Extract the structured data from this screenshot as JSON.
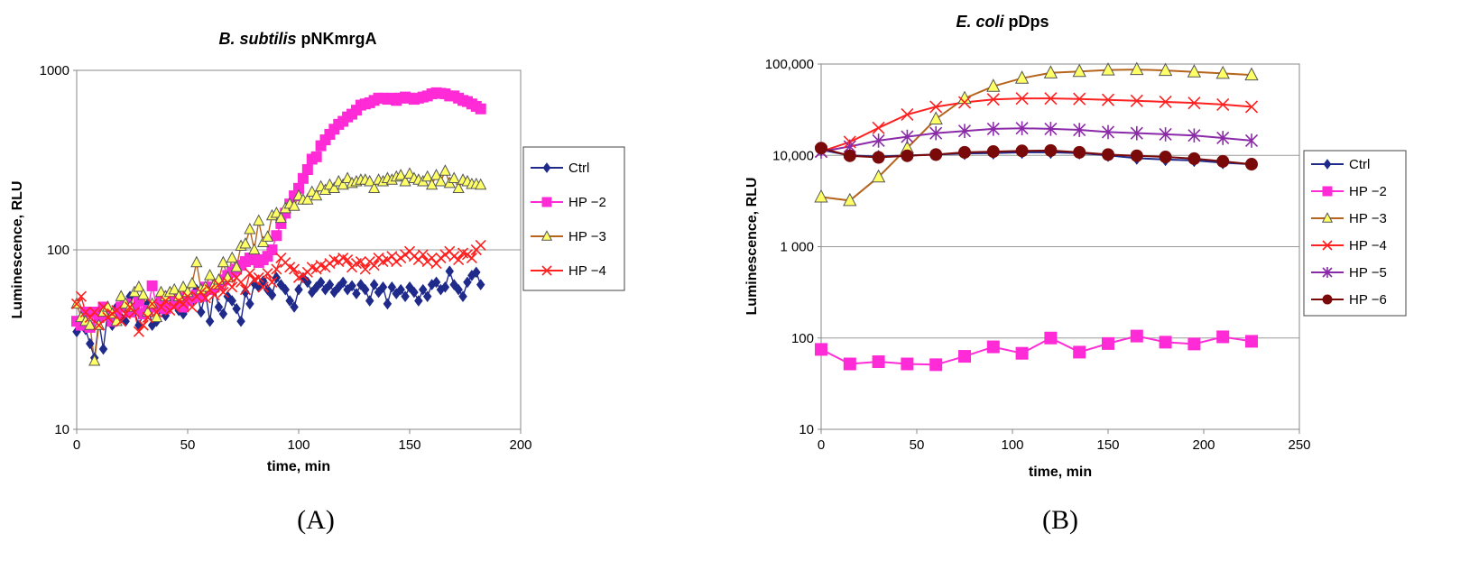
{
  "figure": {
    "panel_labels": [
      "(A)",
      "(B)"
    ]
  },
  "chart_data": [
    {
      "type": "line",
      "title_italic": "B. subtilis",
      "title_rest": " pNKmrgA",
      "xlabel": "time, min",
      "ylabel": "Luminescence, RLU",
      "xlim": [
        0,
        200
      ],
      "ylim": [
        10,
        1000
      ],
      "yscale": "log",
      "xticks": [
        0,
        50,
        100,
        150,
        200
      ],
      "xtick_labels": [
        "0",
        "50",
        "100",
        "150",
        "200"
      ],
      "yticks": [
        10,
        100,
        1000
      ],
      "ytick_labels": [
        "10",
        "100",
        "1000"
      ],
      "grid": "horizontal",
      "legend_position": "right",
      "series": [
        {
          "name": "Ctrl",
          "color": "#1f2a8a",
          "marker": "diamond",
          "x": [
            0,
            2,
            4,
            6,
            8,
            10,
            12,
            14,
            16,
            18,
            20,
            22,
            24,
            26,
            28,
            30,
            32,
            34,
            36,
            38,
            40,
            42,
            44,
            46,
            48,
            50,
            52,
            54,
            56,
            58,
            60,
            62,
            64,
            66,
            68,
            70,
            72,
            74,
            76,
            78,
            80,
            82,
            84,
            86,
            88,
            90,
            92,
            94,
            96,
            98,
            100,
            102,
            104,
            106,
            108,
            110,
            112,
            114,
            116,
            118,
            120,
            122,
            124,
            126,
            128,
            130,
            132,
            134,
            136,
            138,
            140,
            142,
            144,
            146,
            148,
            150,
            152,
            154,
            156,
            158,
            160,
            162,
            164,
            166,
            168,
            170,
            172,
            174,
            176,
            178,
            180,
            182
          ],
          "y": [
            35,
            42,
            36,
            30,
            25,
            40,
            28,
            45,
            38,
            48,
            42,
            40,
            55,
            45,
            38,
            44,
            50,
            38,
            40,
            47,
            43,
            48,
            50,
            46,
            44,
            55,
            52,
            60,
            45,
            58,
            40,
            62,
            48,
            44,
            55,
            52,
            47,
            40,
            58,
            50,
            65,
            62,
            67,
            60,
            56,
            70,
            64,
            60,
            52,
            48,
            60,
            70,
            66,
            58,
            62,
            66,
            60,
            64,
            58,
            62,
            66,
            60,
            63,
            57,
            64,
            60,
            52,
            64,
            58,
            62,
            50,
            62,
            57,
            60,
            55,
            62,
            58,
            52,
            60,
            55,
            64,
            66,
            60,
            62,
            76,
            64,
            60,
            55,
            66,
            72,
            75,
            64
          ]
        },
        {
          "name": "HP −2",
          "color": "#ff2bd6",
          "marker": "square",
          "x": [
            0,
            2,
            4,
            6,
            8,
            10,
            12,
            14,
            16,
            18,
            20,
            22,
            24,
            26,
            28,
            30,
            32,
            34,
            36,
            38,
            40,
            42,
            44,
            46,
            48,
            50,
            52,
            54,
            56,
            58,
            60,
            62,
            64,
            66,
            68,
            70,
            72,
            74,
            76,
            78,
            80,
            82,
            84,
            86,
            88,
            90,
            92,
            94,
            96,
            98,
            100,
            102,
            104,
            106,
            108,
            110,
            112,
            114,
            116,
            118,
            120,
            122,
            124,
            126,
            128,
            130,
            132,
            134,
            136,
            138,
            140,
            142,
            144,
            146,
            148,
            150,
            152,
            154,
            156,
            158,
            160,
            162,
            164,
            166,
            168,
            170,
            172,
            174,
            176,
            178,
            180,
            182
          ],
          "y": [
            40,
            38,
            45,
            37,
            45,
            42,
            48,
            44,
            40,
            44,
            48,
            50,
            45,
            47,
            52,
            44,
            46,
            63,
            48,
            52,
            47,
            55,
            50,
            54,
            48,
            52,
            54,
            56,
            55,
            62,
            60,
            62,
            64,
            68,
            72,
            75,
            78,
            82,
            86,
            90,
            88,
            85,
            88,
            92,
            100,
            120,
            140,
            160,
            180,
            200,
            220,
            250,
            280,
            320,
            330,
            380,
            410,
            440,
            470,
            500,
            520,
            550,
            570,
            600,
            640,
            650,
            660,
            680,
            700,
            700,
            690,
            700,
            680,
            700,
            710,
            700,
            690,
            700,
            710,
            720,
            740,
            750,
            745,
            740,
            720,
            720,
            700,
            680,
            670,
            650,
            630,
            610
          ]
        },
        {
          "name": "HP −3",
          "color": "#b5651d",
          "marker": "triangle",
          "x": [
            0,
            2,
            4,
            6,
            8,
            10,
            12,
            14,
            16,
            18,
            20,
            22,
            24,
            26,
            28,
            30,
            32,
            34,
            36,
            38,
            40,
            42,
            44,
            46,
            48,
            50,
            52,
            54,
            56,
            58,
            60,
            62,
            64,
            66,
            68,
            70,
            72,
            74,
            76,
            78,
            80,
            82,
            84,
            86,
            88,
            90,
            92,
            94,
            96,
            98,
            100,
            102,
            104,
            106,
            108,
            110,
            112,
            114,
            116,
            118,
            120,
            122,
            124,
            126,
            128,
            130,
            132,
            134,
            136,
            138,
            140,
            142,
            144,
            146,
            148,
            150,
            152,
            154,
            156,
            158,
            160,
            162,
            164,
            166,
            168,
            170,
            172,
            174,
            176,
            178,
            180,
            182
          ],
          "y": [
            50,
            42,
            40,
            38,
            24,
            38,
            45,
            48,
            44,
            40,
            55,
            50,
            48,
            58,
            62,
            56,
            45,
            50,
            42,
            58,
            55,
            58,
            60,
            55,
            62,
            58,
            65,
            85,
            60,
            62,
            72,
            64,
            68,
            85,
            70,
            90,
            80,
            105,
            108,
            130,
            100,
            145,
            110,
            118,
            155,
            160,
            150,
            170,
            180,
            175,
            200,
            190,
            190,
            210,
            200,
            225,
            215,
            230,
            220,
            240,
            230,
            250,
            235,
            240,
            245,
            245,
            240,
            220,
            245,
            240,
            250,
            245,
            255,
            260,
            240,
            265,
            250,
            245,
            240,
            255,
            230,
            260,
            240,
            275,
            235,
            250,
            220,
            245,
            240,
            232,
            232,
            230
          ]
        },
        {
          "name": "HP −4",
          "color": "#ff2020",
          "marker": "x",
          "x": [
            0,
            2,
            4,
            6,
            8,
            10,
            12,
            14,
            16,
            18,
            20,
            22,
            24,
            26,
            28,
            30,
            32,
            34,
            36,
            38,
            40,
            42,
            44,
            46,
            48,
            50,
            52,
            54,
            56,
            58,
            60,
            62,
            64,
            66,
            68,
            70,
            72,
            74,
            76,
            78,
            80,
            82,
            84,
            86,
            88,
            90,
            92,
            94,
            96,
            98,
            100,
            102,
            104,
            106,
            108,
            110,
            112,
            114,
            116,
            118,
            120,
            122,
            124,
            126,
            128,
            130,
            132,
            134,
            136,
            138,
            140,
            142,
            144,
            146,
            148,
            150,
            152,
            154,
            156,
            158,
            160,
            162,
            164,
            166,
            168,
            170,
            172,
            174,
            176,
            178,
            180,
            182
          ],
          "y": [
            50,
            55,
            45,
            42,
            45,
            38,
            48,
            42,
            44,
            46,
            40,
            44,
            48,
            45,
            35,
            38,
            42,
            50,
            45,
            48,
            52,
            46,
            48,
            52,
            50,
            55,
            48,
            55,
            58,
            54,
            60,
            56,
            64,
            58,
            66,
            62,
            70,
            66,
            60,
            74,
            68,
            70,
            62,
            74,
            66,
            78,
            90,
            85,
            80,
            78,
            70,
            72,
            75,
            80,
            78,
            82,
            80,
            84,
            88,
            86,
            90,
            88,
            80,
            84,
            86,
            78,
            86,
            82,
            90,
            86,
            88,
            92,
            86,
            90,
            94,
            98,
            92,
            88,
            94,
            86,
            90,
            84,
            90,
            94,
            98,
            92,
            88,
            96,
            94,
            90,
            100,
            106
          ]
        }
      ]
    },
    {
      "type": "line",
      "title_italic": "E. coli",
      "title_rest": " pDps",
      "xlabel": "time, min",
      "ylabel": "Luminescence, RLU",
      "xlim": [
        0,
        250
      ],
      "ylim": [
        10,
        100000
      ],
      "yscale": "log",
      "xticks": [
        0,
        50,
        100,
        150,
        200,
        250
      ],
      "xtick_labels": [
        "0",
        "50",
        "100",
        "150",
        "200",
        "250"
      ],
      "yticks": [
        10,
        100,
        1000,
        10000,
        100000
      ],
      "ytick_labels": [
        "10",
        "100",
        "1 000",
        "10,000",
        "100,000"
      ],
      "grid": "horizontal",
      "legend_position": "right",
      "series": [
        {
          "name": "Ctrl",
          "color": "#1f2a8a",
          "marker": "diamond",
          "x": [
            0,
            15,
            30,
            45,
            60,
            75,
            90,
            105,
            120,
            135,
            150,
            165,
            180,
            195,
            210,
            225
          ],
          "y": [
            11500,
            10000,
            9700,
            10000,
            10200,
            10500,
            10600,
            10800,
            10800,
            10600,
            10000,
            9300,
            9000,
            8800,
            8300,
            8000
          ]
        },
        {
          "name": "HP −2",
          "color": "#ff2bd6",
          "marker": "square",
          "x": [
            0,
            15,
            30,
            45,
            60,
            75,
            90,
            105,
            120,
            135,
            150,
            165,
            180,
            195,
            210,
            225
          ],
          "y": [
            75,
            52,
            55,
            52,
            51,
            63,
            80,
            68,
            100,
            70,
            87,
            105,
            90,
            86,
            103,
            92
          ]
        },
        {
          "name": "HP −3",
          "color": "#b5651d",
          "marker": "triangle",
          "x": [
            0,
            15,
            30,
            45,
            60,
            75,
            90,
            105,
            120,
            135,
            150,
            165,
            180,
            195,
            210,
            225
          ],
          "y": [
            3500,
            3200,
            5800,
            12000,
            25000,
            42000,
            57000,
            70000,
            80000,
            83000,
            86000,
            87000,
            85000,
            82000,
            79000,
            76000
          ]
        },
        {
          "name": "HP −4",
          "color": "#ff2020",
          "marker": "x",
          "x": [
            0,
            15,
            30,
            45,
            60,
            75,
            90,
            105,
            120,
            135,
            150,
            165,
            180,
            195,
            210,
            225
          ],
          "y": [
            11000,
            14000,
            20000,
            28000,
            34000,
            38000,
            41000,
            42000,
            42000,
            41500,
            40500,
            39500,
            38500,
            37500,
            36000,
            34000
          ]
        },
        {
          "name": "HP −5",
          "color": "#8b2aa8",
          "marker": "star",
          "x": [
            0,
            15,
            30,
            45,
            60,
            75,
            90,
            105,
            120,
            135,
            150,
            165,
            180,
            195,
            210,
            225
          ],
          "y": [
            11000,
            12500,
            14500,
            16000,
            17500,
            18500,
            19500,
            19800,
            19500,
            19000,
            18000,
            17500,
            17000,
            16500,
            15500,
            14500
          ]
        },
        {
          "name": "HP −6",
          "color": "#7a0a0a",
          "marker": "circle",
          "x": [
            0,
            15,
            30,
            45,
            60,
            75,
            90,
            105,
            120,
            135,
            150,
            165,
            180,
            195,
            210,
            225
          ],
          "y": [
            12000,
            9900,
            9500,
            9900,
            10200,
            10800,
            11000,
            11200,
            11300,
            10800,
            10200,
            9900,
            9600,
            9200,
            8600,
            8000
          ]
        }
      ]
    }
  ]
}
